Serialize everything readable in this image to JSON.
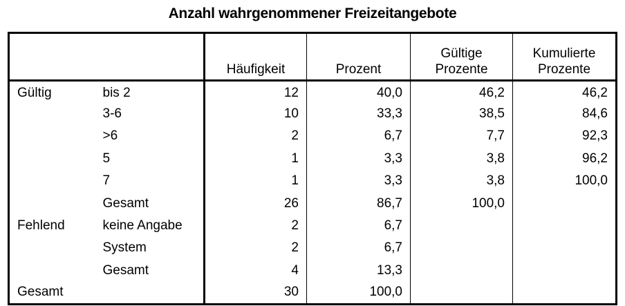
{
  "title": "Anzahl wahrgenommener Freizeitangebote",
  "headers": [
    "Häufigkeit",
    "Prozent",
    "Gültige Prozente",
    "Kumulierte Prozente"
  ],
  "header_lines": [
    [
      "Häufigkeit"
    ],
    [
      "Prozent"
    ],
    [
      "Gültige",
      "Prozente"
    ],
    [
      "Kumulierte",
      "Prozente"
    ]
  ],
  "rows": [
    {
      "group": "Gültig",
      "label": "bis 2",
      "freq": "12",
      "pct": "40,0",
      "valid": "46,2",
      "cum": "46,2"
    },
    {
      "group": "",
      "label": "3-6",
      "freq": "10",
      "pct": "33,3",
      "valid": "38,5",
      "cum": "84,6"
    },
    {
      "group": "",
      "label": ">6",
      "freq": "2",
      "pct": "6,7",
      "valid": "7,7",
      "cum": "92,3"
    },
    {
      "group": "",
      "label": "5",
      "freq": "1",
      "pct": "3,3",
      "valid": "3,8",
      "cum": "96,2"
    },
    {
      "group": "",
      "label": "7",
      "freq": "1",
      "pct": "3,3",
      "valid": "3,8",
      "cum": "100,0"
    },
    {
      "group": "",
      "label": "Gesamt",
      "freq": "26",
      "pct": "86,7",
      "valid": "100,0",
      "cum": ""
    },
    {
      "group": "Fehlend",
      "label": "keine Angabe",
      "freq": "2",
      "pct": "6,7",
      "valid": "",
      "cum": ""
    },
    {
      "group": "",
      "label": "System",
      "freq": "2",
      "pct": "6,7",
      "valid": "",
      "cum": ""
    },
    {
      "group": "",
      "label": "Gesamt",
      "freq": "4",
      "pct": "13,3",
      "valid": "",
      "cum": ""
    },
    {
      "group": "Gesamt",
      "label": "",
      "freq": "30",
      "pct": "100,0",
      "valid": "",
      "cum": ""
    }
  ]
}
